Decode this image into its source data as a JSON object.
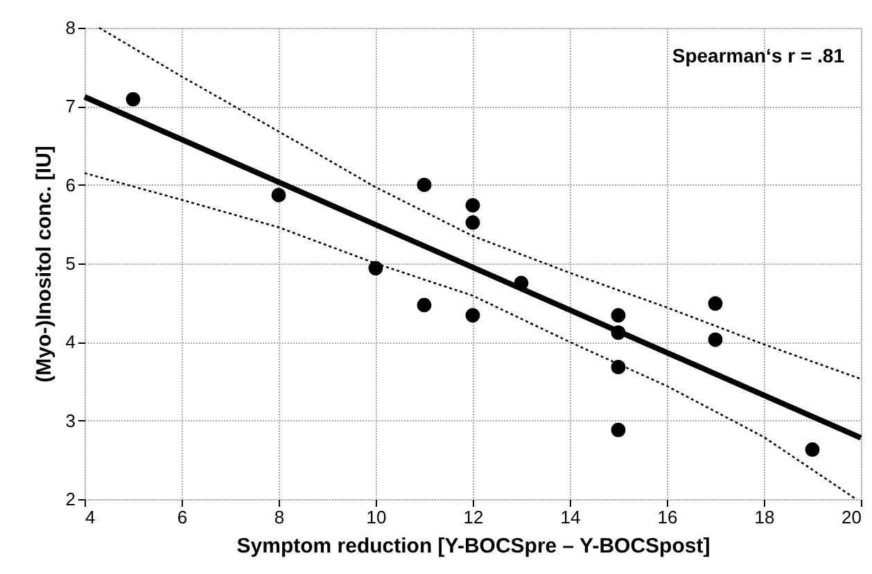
{
  "chart_data": {
    "type": "scatter",
    "xlabel": "Symptom reduction [Y-BOCSpre – Y-BOCSpost]",
    "ylabel": "(Myo-)Inositol conc. [IU]",
    "annotations": [
      "Spearman‘s r = .81"
    ],
    "xlim": [
      4,
      20
    ],
    "ylim": [
      2,
      8
    ],
    "xticks": [
      4,
      6,
      8,
      10,
      12,
      14,
      16,
      18,
      20
    ],
    "yticks": [
      2,
      3,
      4,
      5,
      6,
      7,
      8
    ],
    "grid": true,
    "series": [
      {
        "color": "#000000",
        "marker": "circle",
        "x": [
          5,
          8,
          10,
          11,
          11,
          12,
          12,
          12,
          13,
          15,
          15,
          15,
          15,
          17,
          17,
          19
        ],
        "values": [
          7.09,
          5.87,
          4.94,
          6.0,
          4.47,
          5.74,
          5.52,
          4.34,
          4.75,
          4.34,
          4.12,
          3.68,
          2.88,
          4.49,
          4.03,
          2.63
        ]
      },
      {
        "type": "line",
        "color": "#000000",
        "line_style": "solid",
        "x": [
          4,
          20
        ],
        "values": [
          7.12,
          2.78
        ]
      },
      {
        "type": "line",
        "color": "#000000",
        "line_style": "dotted",
        "x": [
          4.3,
          6,
          8,
          10,
          12,
          14,
          16,
          18,
          20
        ],
        "values": [
          8,
          7.38,
          6.68,
          5.97,
          5.35,
          4.88,
          4.44,
          3.97,
          3.53
        ]
      },
      {
        "type": "line",
        "color": "#000000",
        "line_style": "dotted",
        "x": [
          4,
          6,
          8,
          10,
          12,
          14,
          16,
          18,
          19.9
        ],
        "values": [
          6.15,
          5.81,
          5.46,
          5.0,
          4.59,
          4.0,
          3.44,
          2.79,
          2.0
        ]
      }
    ]
  }
}
